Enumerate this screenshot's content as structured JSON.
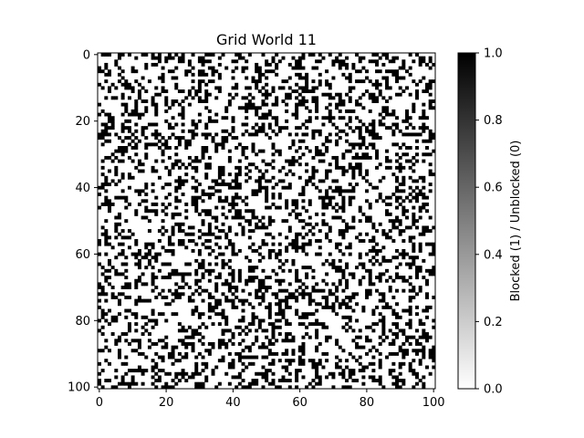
{
  "chart_data": {
    "type": "heatmap",
    "title": "Grid World 11",
    "xlabel": "",
    "ylabel": "",
    "grid_size": 101,
    "xlim": [
      0,
      100
    ],
    "ylim": [
      100,
      0
    ],
    "x_ticks": [
      0,
      20,
      40,
      60,
      80,
      100
    ],
    "y_ticks": [
      0,
      20,
      40,
      60,
      80,
      100
    ],
    "x_tick_labels": [
      "0",
      "20",
      "40",
      "60",
      "80",
      "100"
    ],
    "y_tick_labels": [
      "0",
      "20",
      "40",
      "60",
      "80",
      "100"
    ],
    "values_description": "binary occupancy grid, roughly 30% of cells blocked (1) in a scattered random pattern",
    "blocked_fraction": 0.3,
    "grid": false,
    "colormap": {
      "name": "Greys",
      "min_color": "#ffffff",
      "max_color": "#000000"
    },
    "colorbar": {
      "label": "Blocked (1) / Unblocked (0)",
      "range": [
        0.0,
        1.0
      ],
      "ticks": [
        0.0,
        0.2,
        0.4,
        0.6,
        0.8,
        1.0
      ],
      "tick_labels": [
        "0.0",
        "0.2",
        "0.4",
        "0.6",
        "0.8",
        "1.0"
      ],
      "placement": "right"
    }
  }
}
